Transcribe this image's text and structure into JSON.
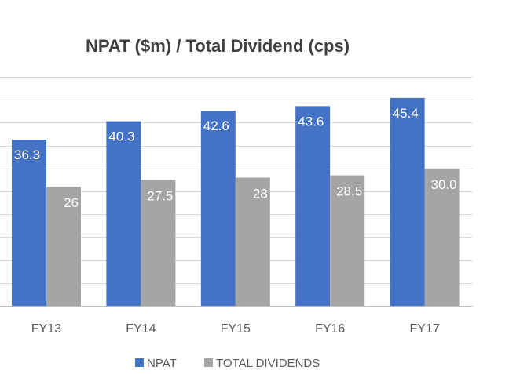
{
  "chart_data": {
    "type": "bar",
    "title": "NPAT ($m) / Total Dividend (cps)",
    "categories": [
      "FY13",
      "FY14",
      "FY15",
      "FY16",
      "FY17"
    ],
    "series": [
      {
        "name": "NPAT",
        "color": "#4472C4",
        "values": [
          36.3,
          40.3,
          42.6,
          43.6,
          45.4
        ],
        "labels": [
          "36.3",
          "40.3",
          "42.6",
          "43.6",
          "45.4"
        ]
      },
      {
        "name": "TOTAL DIVIDENDS",
        "color": "#A5A5A5",
        "values": [
          26,
          27.5,
          28,
          28.5,
          30.0
        ],
        "labels": [
          "26",
          "27.5",
          "28",
          "28.5",
          "30.0"
        ]
      }
    ],
    "ylim": [
      0,
      50
    ],
    "grid": true,
    "legend_position": "bottom",
    "xlabel": "",
    "ylabel": ""
  }
}
